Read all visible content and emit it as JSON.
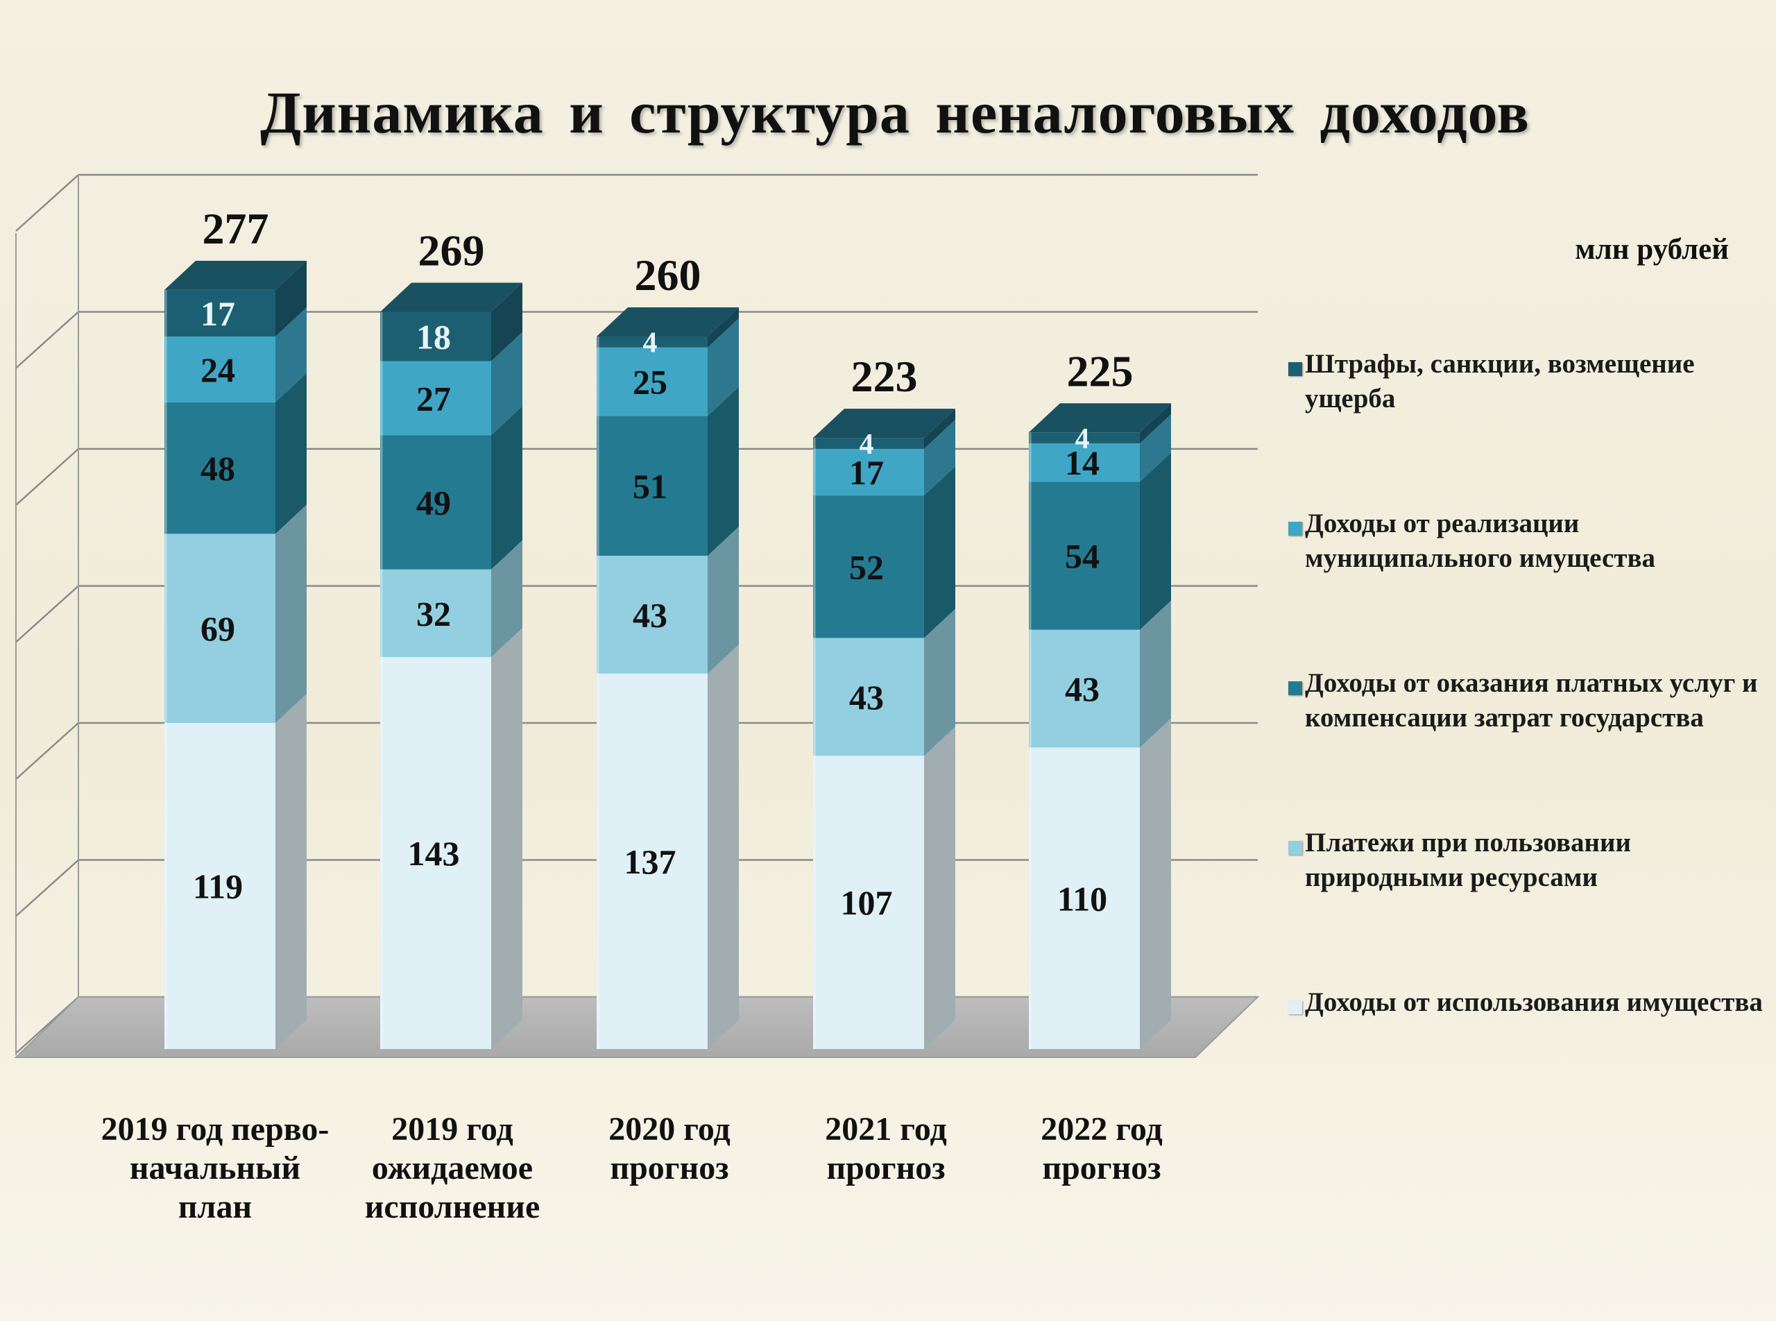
{
  "title": "Динамика  и  структура неналоговых доходов",
  "unit": "млн рублей",
  "legend": [
    {
      "label": "Штрафы, санкции, возмещение ущерба",
      "color": "#1d5f72"
    },
    {
      "label": "Доходы от реализации муниципального имущества",
      "color": "#3fa6c6"
    },
    {
      "label": "Доходы от оказания платных услуг и компенсации затрат государства",
      "color": "#247b91"
    },
    {
      "label": "Платежи при пользовании природными ресурсами",
      "color": "#93cfe0"
    },
    {
      "label": "Доходы от использования имущества",
      "color": "#dff0f6"
    }
  ],
  "categories": [
    "2019 год перво-начальный план",
    "2019 год ожидаемое исполнение",
    "2020 год прогноз",
    "2021 год прогноз",
    "2022 год прогноз"
  ],
  "chart_data": {
    "type": "bar",
    "stacked": true,
    "categories": [
      "2019 год перво-начальный план",
      "2019 год ожидаемое исполнение",
      "2020 год прогноз",
      "2021 год прогноз",
      "2022 год прогноз"
    ],
    "series": [
      {
        "name": "Доходы от использования имущества",
        "values": [
          119,
          143,
          137,
          107,
          110
        ]
      },
      {
        "name": "Платежи при пользовании природными ресурсами",
        "values": [
          69,
          32,
          43,
          43,
          43
        ]
      },
      {
        "name": "Доходы от оказания платных услуг и компенсации затрат государства",
        "values": [
          48,
          49,
          51,
          52,
          54
        ]
      },
      {
        "name": "Доходы от реализации муниципального имущества",
        "values": [
          24,
          27,
          25,
          17,
          14
        ]
      },
      {
        "name": "Штрафы, санкции, возмещение ущерба",
        "values": [
          17,
          18,
          4,
          4,
          4
        ]
      }
    ],
    "totals": [
      277,
      269,
      260,
      223,
      225
    ],
    "title": "Динамика  и  структура неналоговых доходов",
    "ylabel": "млн рублей",
    "ylim": [
      0,
      300
    ],
    "grid": true,
    "legend_position": "right"
  }
}
